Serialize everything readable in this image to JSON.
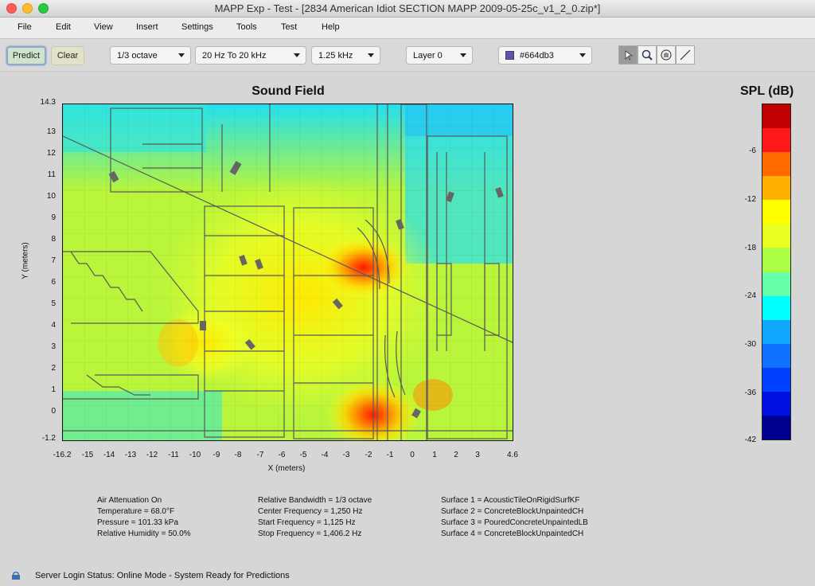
{
  "window": {
    "title": "MAPP Exp - Test - [2834 American Idiot SECTION MAPP 2009-05-25c_v1_2_0.zip*]"
  },
  "menu": [
    "File",
    "Edit",
    "View",
    "Insert",
    "Settings",
    "Tools",
    "Test",
    "Help"
  ],
  "toolbar": {
    "predict_label": "Predict",
    "clear_label": "Clear",
    "bandwidth": "1/3 octave",
    "range": "20 Hz To 20 kHz",
    "frequency": "1.25 kHz",
    "layer": "Layer 0",
    "color_value": "#664db3",
    "color_swatch": "#664db3"
  },
  "plot": {
    "title": "Sound Field",
    "xlabel": "X (meters)",
    "ylabel": "Y (meters)",
    "yticks": [
      "14.3",
      "13",
      "12",
      "11",
      "10",
      "9",
      "8",
      "7",
      "6",
      "5",
      "4",
      "3",
      "2",
      "1",
      "0",
      "-1.2"
    ],
    "xticks": [
      "-16.2",
      "-15",
      "-14",
      "-13",
      "-12",
      "-11",
      "-10",
      "-9",
      "-8",
      "-7",
      "-6",
      "-5",
      "-4",
      "-3",
      "-2",
      "-1",
      "0",
      "1",
      "2",
      "3",
      "4.6"
    ]
  },
  "colorbar": {
    "title": "SPL (dB)",
    "ticks": [
      "-6",
      "-12",
      "-18",
      "-24",
      "-30",
      "-36",
      "-42"
    ],
    "colors": [
      "#c00000",
      "#ff1818",
      "#ff6a00",
      "#ffb000",
      "#ffff00",
      "#e8ff20",
      "#aaff44",
      "#66ffaa",
      "#00ffff",
      "#10a8ff",
      "#1070ff",
      "#0040ff",
      "#0010e0",
      "#000090"
    ]
  },
  "info": {
    "col1": [
      "Air Attenuation On",
      "Temperature = 68.0°F",
      "Pressure = 101.33  kPa",
      "Relative Humidity = 50.0%"
    ],
    "col2": [
      "Relative Bandwidth = 1/3 octave",
      "Center Frequency = 1,250 Hz",
      "Start Frequency = 1,125 Hz",
      "Stop Frequency = 1,406.2 Hz"
    ],
    "col3": [
      "Surface 1 = AcousticTileOnRigidSurfKF",
      "Surface 2 = ConcreteBlockUnpaintedCH",
      "Surface 3 = PouredConcreteUnpaintedLB",
      "Surface 4 = ConcreteBlockUnpaintedCH"
    ]
  },
  "status": {
    "text": "Server Login Status: Online Mode - System Ready for Predictions"
  }
}
